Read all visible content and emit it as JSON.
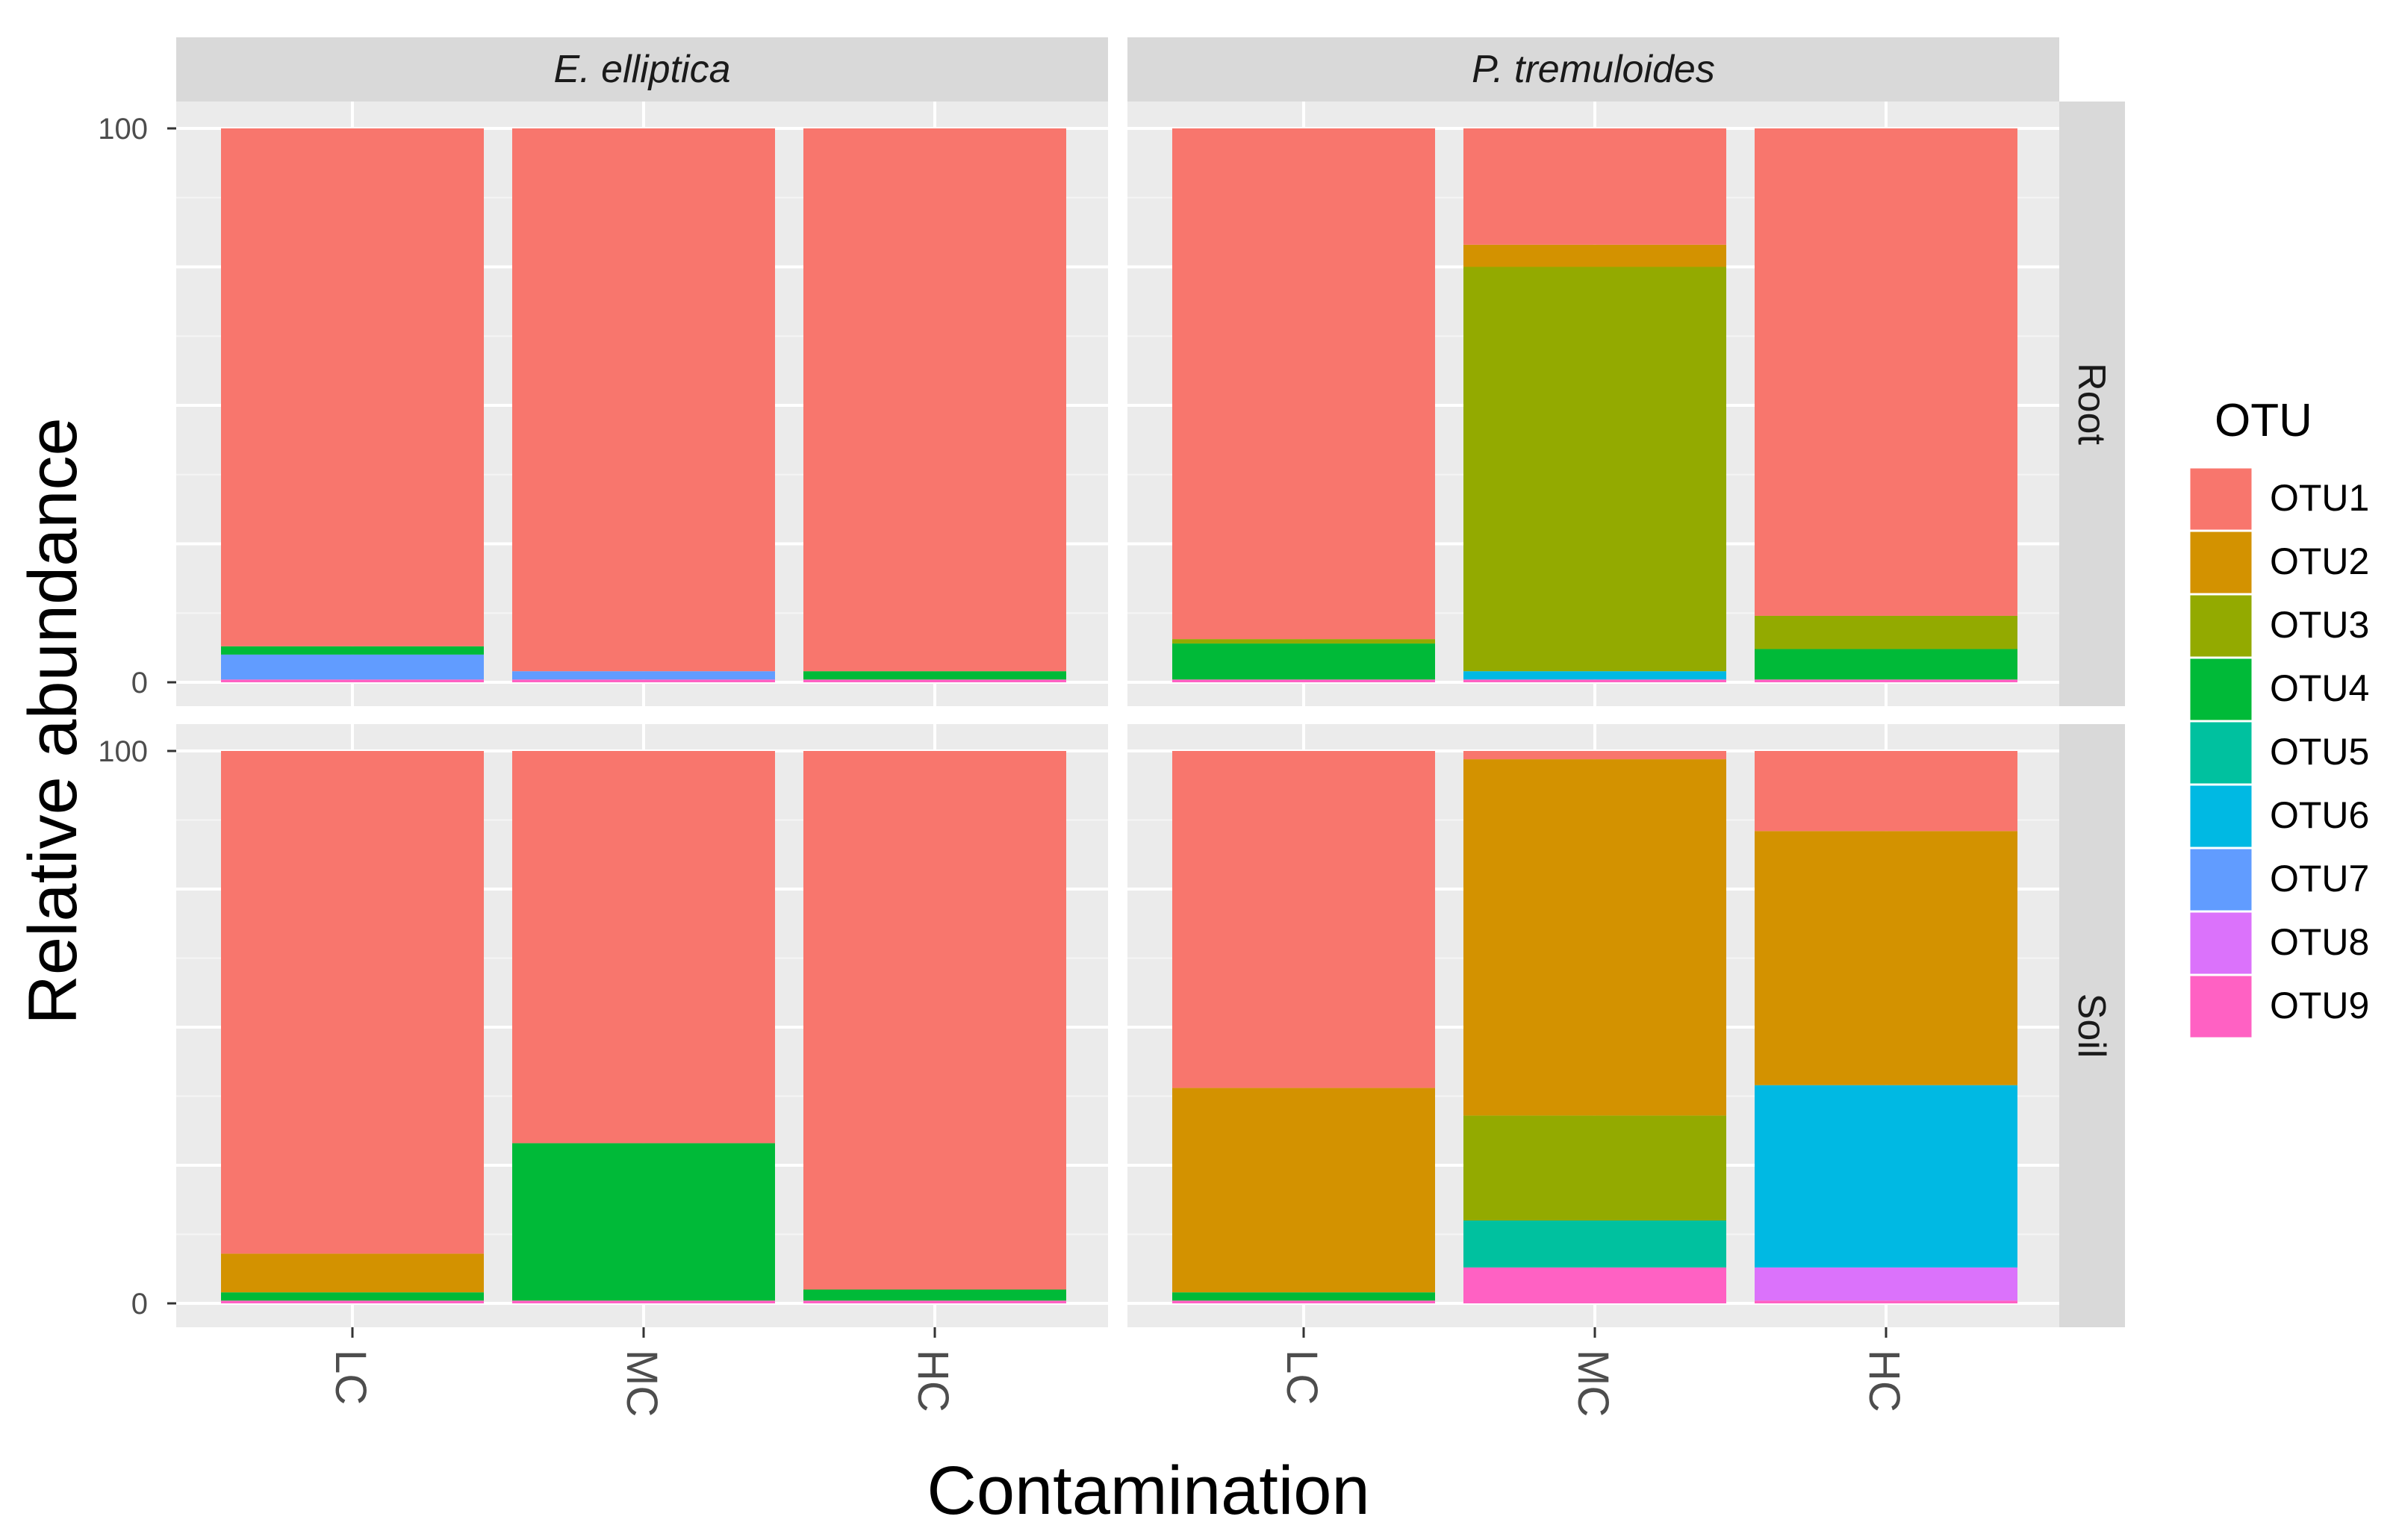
{
  "chart_data": {
    "type": "bar",
    "stacked": true,
    "facet_type": "grid",
    "xlabel": "Contamination",
    "ylabel": "Relative abundance",
    "ylim": [
      0,
      100
    ],
    "y_ticks": [
      "0",
      "100"
    ],
    "categories": [
      "LC",
      "MC",
      "HC"
    ],
    "columns": [
      "E. elliptica",
      "P. tremuloides"
    ],
    "rows": [
      "Root",
      "Soil"
    ],
    "legend": {
      "title": "OTU",
      "position": "right",
      "items": [
        "OTU1",
        "OTU2",
        "OTU3",
        "OTU4",
        "OTU5",
        "OTU6",
        "OTU7",
        "OTU8",
        "OTU9"
      ]
    },
    "colors": {
      "OTU1": "#F8766D",
      "OTU2": "#D39200",
      "OTU3": "#93AA00",
      "OTU4": "#00BA38",
      "OTU5": "#00C19F",
      "OTU6": "#00B9E3",
      "OTU7": "#619CFF",
      "OTU8": "#DB72FB",
      "OTU9": "#FF61C3"
    },
    "panels": [
      {
        "column": "E. elliptica",
        "row": "Root",
        "bars": [
          {
            "category": "LC",
            "values": {
              "OTU9": 0.5,
              "OTU7": 4.5,
              "OTU4": 1.5,
              "OTU1": 93.5
            }
          },
          {
            "category": "MC",
            "values": {
              "OTU9": 0.5,
              "OTU7": 1.5,
              "OTU1": 98
            }
          },
          {
            "category": "HC",
            "values": {
              "OTU9": 0.5,
              "OTU4": 1.5,
              "OTU1": 98
            }
          }
        ]
      },
      {
        "column": "P. tremuloides",
        "row": "Root",
        "bars": [
          {
            "category": "LC",
            "values": {
              "OTU9": 0.5,
              "OTU4": 6.5,
              "OTU3": 0.8,
              "OTU1": 92.2
            }
          },
          {
            "category": "MC",
            "values": {
              "OTU9": 0.5,
              "OTU6": 1.5,
              "OTU3": 73,
              "OTU2": 4,
              "OTU1": 21
            }
          },
          {
            "category": "HC",
            "values": {
              "OTU9": 0.5,
              "OTU4": 5.5,
              "OTU3": 6,
              "OTU1": 88
            }
          }
        ]
      },
      {
        "column": "E. elliptica",
        "row": "Soil",
        "bars": [
          {
            "category": "LC",
            "values": {
              "OTU9": 0.5,
              "OTU4": 1.5,
              "OTU2": 7,
              "OTU1": 91
            }
          },
          {
            "category": "MC",
            "values": {
              "OTU9": 0.5,
              "OTU4": 28.5,
              "OTU1": 71
            }
          },
          {
            "category": "HC",
            "values": {
              "OTU9": 0.5,
              "OTU4": 2,
              "OTU1": 97.5
            }
          }
        ]
      },
      {
        "column": "P. tremuloides",
        "row": "Soil",
        "bars": [
          {
            "category": "LC",
            "values": {
              "OTU9": 0.5,
              "OTU4": 1.5,
              "OTU2": 37,
              "OTU1": 61
            }
          },
          {
            "category": "MC",
            "values": {
              "OTU9": 6.5,
              "OTU5": 8.5,
              "OTU3": 19,
              "OTU2": 64.5,
              "OTU1": 1.5
            }
          },
          {
            "category": "HC",
            "values": {
              "OTU9": 0.5,
              "OTU8": 6,
              "OTU6": 33,
              "OTU2": 46,
              "OTU1": 14.5
            }
          }
        ]
      }
    ]
  }
}
